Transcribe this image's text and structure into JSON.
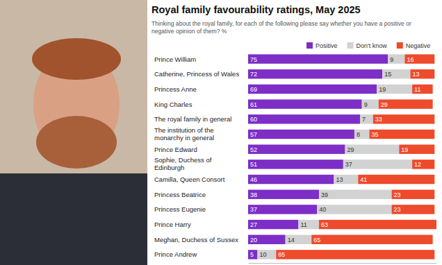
{
  "chart_data": {
    "type": "bar",
    "orientation": "horizontal",
    "stacked": true,
    "data_labels": true,
    "title": "Royal family favourability ratings, May 2025",
    "subtitle": "Thinking about the royal family, for each of the following please say whether you have a positive or negative opinion of them? %",
    "categories": [
      "Prince William",
      "Catherine, Princess of Wales",
      "Princess Anne",
      "King Charles",
      "The royal family in general",
      "The institution of the monarchy in general",
      "Prince Edward",
      "Sophie, Duchess of Edinburgh",
      "Camilla, Queen Consort",
      "Princess Beatrice",
      "Princess Eugenie",
      "Prince Harry",
      "Meghan, Duchess of Sussex",
      "Prince Andrew"
    ],
    "series": [
      {
        "name": "Positive",
        "color": "#7d2ec6",
        "values": [
          75,
          72,
          69,
          61,
          60,
          57,
          52,
          51,
          46,
          38,
          37,
          27,
          20,
          5
        ]
      },
      {
        "name": "Don't know",
        "color": "#d2d2d2",
        "values": [
          9,
          15,
          19,
          9,
          7,
          8,
          29,
          37,
          13,
          39,
          40,
          11,
          14,
          10
        ]
      },
      {
        "name": "Negative",
        "color": "#ee4a2c",
        "values": [
          16,
          13,
          11,
          29,
          33,
          35,
          19,
          12,
          41,
          23,
          23,
          63,
          65,
          85
        ]
      }
    ],
    "xlim": [
      0,
      101
    ],
    "tick_labels": "y",
    "legend": "top"
  }
}
